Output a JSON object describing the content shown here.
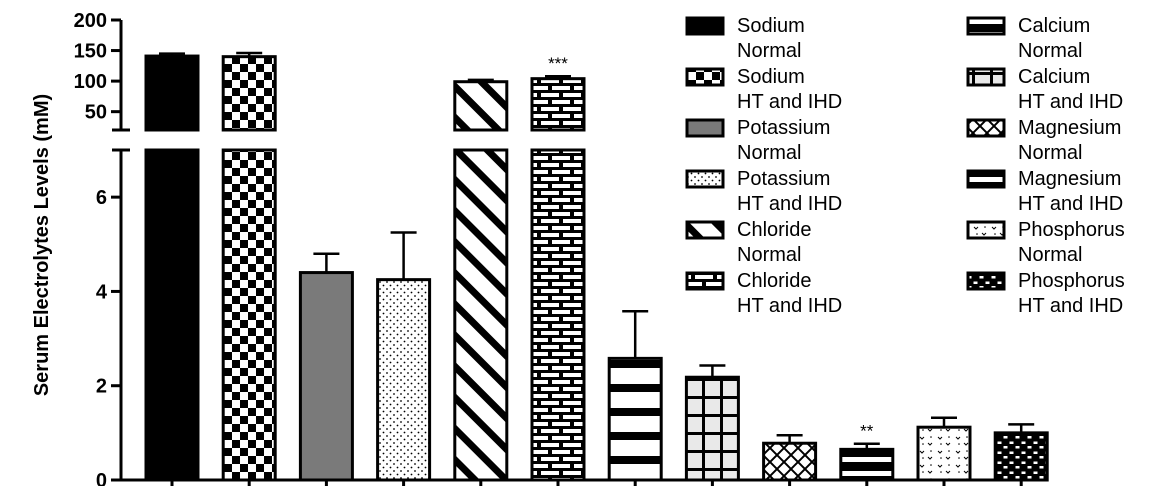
{
  "chart_data": {
    "type": "bar",
    "title": "",
    "xlabel": "",
    "ylabel": "Serum Electrolytes Levels (mM)",
    "axis_break": {
      "lower_range": [
        0,
        7
      ],
      "upper_range": [
        20,
        200
      ]
    },
    "ticks_lower": [
      "0",
      "2",
      "4",
      "6"
    ],
    "ticks_upper": [
      "50",
      "100",
      "150",
      "200"
    ],
    "grid": false,
    "legend_position": "top-right",
    "bars": [
      {
        "name": "Sodium",
        "group": "Normal",
        "value": 141,
        "error": 4,
        "pattern": "solid",
        "significance": ""
      },
      {
        "name": "Sodium",
        "group": "HT and IHD",
        "value": 140,
        "error": 6,
        "pattern": "checker",
        "significance": ""
      },
      {
        "name": "Potassium",
        "group": "Normal",
        "value": 4.4,
        "error": 0.4,
        "pattern": "gray",
        "significance": ""
      },
      {
        "name": "Potassium",
        "group": "HT and IHD",
        "value": 4.25,
        "error": 1.0,
        "pattern": "dots",
        "significance": ""
      },
      {
        "name": "Chloride",
        "group": "Normal",
        "value": 99,
        "error": 3,
        "pattern": "diagonal",
        "significance": ""
      },
      {
        "name": "Chloride",
        "group": "HT and IHD",
        "value": 104,
        "error": 4,
        "pattern": "brick",
        "significance": "***"
      },
      {
        "name": "Calcium",
        "group": "Normal",
        "value": 2.58,
        "error": 1.0,
        "pattern": "hstripes",
        "significance": ""
      },
      {
        "name": "Calcium",
        "group": "HT and IHD",
        "value": 2.18,
        "error": 0.25,
        "pattern": "grid",
        "significance": ""
      },
      {
        "name": "Magnesium",
        "group": "Normal",
        "value": 0.78,
        "error": 0.17,
        "pattern": "crosshatch",
        "significance": ""
      },
      {
        "name": "Magnesium",
        "group": "HT and IHD",
        "value": 0.65,
        "error": 0.12,
        "pattern": "thickstripes",
        "significance": "**"
      },
      {
        "name": "Phosphorus",
        "group": "Normal",
        "value": 1.12,
        "error": 0.2,
        "pattern": "speckle",
        "significance": ""
      },
      {
        "name": "Phosphorus",
        "group": "HT and IHD",
        "value": 1.0,
        "error": 0.18,
        "pattern": "smallbrick",
        "significance": ""
      }
    ],
    "legend": [
      {
        "line1": "Sodium",
        "line2": "Normal",
        "pattern": "solid"
      },
      {
        "line1": "Sodium",
        "line2": "HT and IHD",
        "pattern": "checker"
      },
      {
        "line1": "Potassium",
        "line2": "Normal",
        "pattern": "gray"
      },
      {
        "line1": "Potassium",
        "line2": "HT and IHD",
        "pattern": "dots"
      },
      {
        "line1": "Chloride",
        "line2": "Normal",
        "pattern": "diagonal"
      },
      {
        "line1": "Chloride",
        "line2": "HT and IHD",
        "pattern": "brick"
      },
      {
        "line1": "Calcium",
        "line2": "Normal",
        "pattern": "hstripes"
      },
      {
        "line1": "Calcium",
        "line2": "HT and IHD",
        "pattern": "grid"
      },
      {
        "line1": "Magnesium",
        "line2": "Normal",
        "pattern": "crosshatch"
      },
      {
        "line1": "Magnesium",
        "line2": "HT and IHD",
        "pattern": "thickstripes"
      },
      {
        "line1": "Phosphorus",
        "line2": "Normal",
        "pattern": "speckle"
      },
      {
        "line1": "Phosphorus",
        "line2": "HT and IHD",
        "pattern": "smallbrick"
      }
    ],
    "colors": {
      "ink": "#000000",
      "gray_fill": "#7a7a7a",
      "background": "#ffffff"
    }
  }
}
